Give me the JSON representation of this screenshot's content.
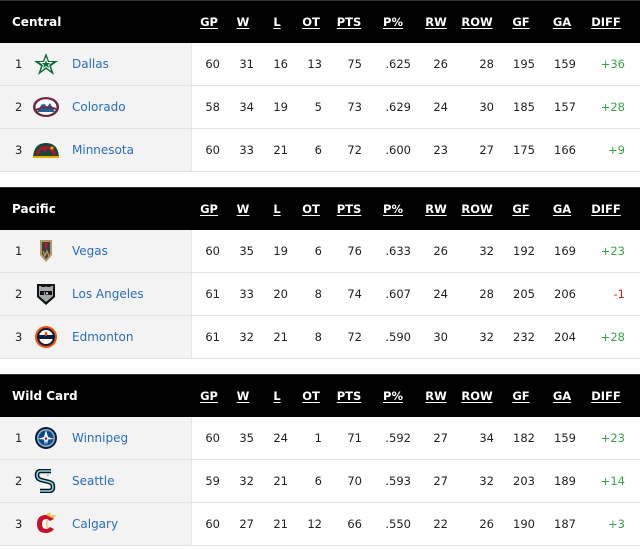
{
  "columns": [
    "GP",
    "W",
    "L",
    "OT",
    "PTS",
    "P%",
    "RW",
    "ROW",
    "GF",
    "GA",
    "DIFF"
  ],
  "sections": [
    {
      "title": "Central",
      "rows": [
        {
          "rank": "1",
          "team": "Dallas",
          "logo": "dallas-star-icon",
          "gp": "60",
          "w": "31",
          "l": "16",
          "ot": "13",
          "pts": "75",
          "pct": ".625",
          "rw": "26",
          "row": "28",
          "gf": "195",
          "ga": "159",
          "diff": "+36"
        },
        {
          "rank": "2",
          "team": "Colorado",
          "logo": "colorado-mountain-icon",
          "gp": "58",
          "w": "34",
          "l": "19",
          "ot": "5",
          "pts": "73",
          "pct": ".629",
          "rw": "24",
          "row": "30",
          "gf": "185",
          "ga": "157",
          "diff": "+28"
        },
        {
          "rank": "3",
          "team": "Minnesota",
          "logo": "minnesota-wild-icon",
          "gp": "60",
          "w": "33",
          "l": "21",
          "ot": "6",
          "pts": "72",
          "pct": ".600",
          "rw": "23",
          "row": "27",
          "gf": "175",
          "ga": "166",
          "diff": "+9"
        }
      ]
    },
    {
      "title": "Pacific",
      "rows": [
        {
          "rank": "1",
          "team": "Vegas",
          "logo": "vegas-helmet-icon",
          "gp": "60",
          "w": "35",
          "l": "19",
          "ot": "6",
          "pts": "76",
          "pct": ".633",
          "rw": "26",
          "row": "32",
          "gf": "192",
          "ga": "169",
          "diff": "+23"
        },
        {
          "rank": "2",
          "team": "Los Angeles",
          "logo": "los-angeles-shield-icon",
          "gp": "61",
          "w": "33",
          "l": "20",
          "ot": "8",
          "pts": "74",
          "pct": ".607",
          "rw": "24",
          "row": "28",
          "gf": "205",
          "ga": "206",
          "diff": "-1"
        },
        {
          "rank": "3",
          "team": "Edmonton",
          "logo": "edmonton-oil-drop-icon",
          "gp": "61",
          "w": "32",
          "l": "21",
          "ot": "8",
          "pts": "72",
          "pct": ".590",
          "rw": "30",
          "row": "32",
          "gf": "232",
          "ga": "204",
          "diff": "+28"
        }
      ]
    },
    {
      "title": "Wild Card",
      "rows": [
        {
          "rank": "1",
          "team": "Winnipeg",
          "logo": "winnipeg-jet-icon",
          "gp": "60",
          "w": "35",
          "l": "24",
          "ot": "1",
          "pts": "71",
          "pct": ".592",
          "rw": "27",
          "row": "34",
          "gf": "182",
          "ga": "159",
          "diff": "+23"
        },
        {
          "rank": "2",
          "team": "Seattle",
          "logo": "seattle-s-icon",
          "gp": "59",
          "w": "32",
          "l": "21",
          "ot": "6",
          "pts": "70",
          "pct": ".593",
          "rw": "27",
          "row": "32",
          "gf": "203",
          "ga": "189",
          "diff": "+14"
        },
        {
          "rank": "3",
          "team": "Calgary",
          "logo": "calgary-flaming-c-icon",
          "gp": "60",
          "w": "27",
          "l": "21",
          "ot": "12",
          "pts": "66",
          "pct": ".550",
          "rw": "22",
          "row": "26",
          "gf": "190",
          "ga": "187",
          "diff": "+3"
        }
      ]
    }
  ],
  "colors": {
    "header_bg": "#000000",
    "team_link": "#2a6ebb",
    "diff_positive": "#3aa34a",
    "diff_negative": "#d0271d"
  }
}
